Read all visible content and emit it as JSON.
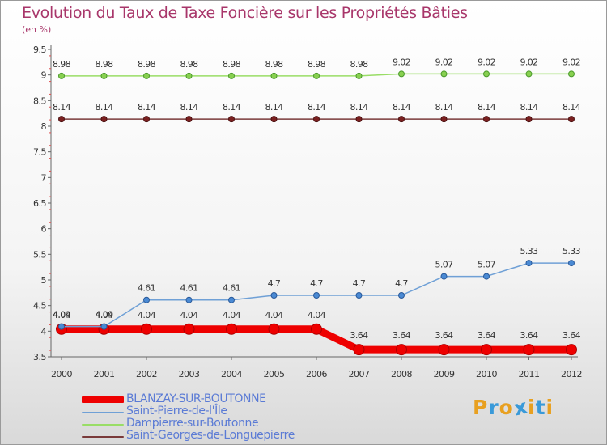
{
  "title": "Evolution du Taux de Taxe Foncière sur les Propriétés Bâties",
  "unit_label": "(en %)",
  "logo": {
    "letters": [
      "P",
      "r",
      "o",
      "x",
      "i",
      "t",
      "i"
    ],
    "colors": [
      "#e8a020",
      "#3a9ad9",
      "#e8a020",
      "#3a9ad9",
      "#e8a020",
      "#3a9ad9",
      "#e8a020"
    ]
  },
  "chart_data": {
    "type": "line",
    "title": "Evolution du Taux de Taxe Foncière sur les Propriétés Bâties",
    "ylabel": "(en %)",
    "xlabel": "",
    "x": [
      "2000",
      "2001",
      "2002",
      "2003",
      "2004",
      "2005",
      "2006",
      "2007",
      "2008",
      "2009",
      "2010",
      "2011",
      "2012"
    ],
    "ylim": [
      3.5,
      9.5
    ],
    "yticks": [
      "3.5",
      "4",
      "4.5",
      "5",
      "5.5",
      "6",
      "6.5",
      "7",
      "7.5",
      "8",
      "8.5",
      "9",
      "9.5"
    ],
    "grid": false,
    "legend_position": "bottom-left",
    "series": [
      {
        "name": "BLANZAY-SUR-BOUTONNE",
        "color": "#ee0000",
        "values": [
          4.04,
          4.04,
          4.04,
          4.04,
          4.04,
          4.04,
          4.04,
          3.64,
          3.64,
          3.64,
          3.64,
          3.64,
          3.64
        ],
        "labels": [
          "4.04",
          "4.04",
          "4.04",
          "4.04",
          "4.04",
          "4.04",
          "4.04",
          "3.64",
          "3.64",
          "3.64",
          "3.64",
          "3.64",
          "3.64"
        ]
      },
      {
        "name": "Saint-Pierre-de-l'Île",
        "color": "#6fa0d6",
        "values": [
          4.09,
          4.09,
          4.61,
          4.61,
          4.61,
          4.7,
          4.7,
          4.7,
          4.7,
          5.07,
          5.07,
          5.33,
          5.33
        ],
        "labels": [
          "4.09",
          "4.09",
          "4.61",
          "4.61",
          "4.61",
          "4.7",
          "4.7",
          "4.7",
          "4.7",
          "5.07",
          "5.07",
          "5.33",
          "5.33"
        ]
      },
      {
        "name": "Dampierre-sur-Boutonne",
        "color": "#99dd66",
        "values": [
          8.98,
          8.98,
          8.98,
          8.98,
          8.98,
          8.98,
          8.98,
          8.98,
          9.02,
          9.02,
          9.02,
          9.02,
          9.02
        ],
        "labels": [
          "8.98",
          "8.98",
          "8.98",
          "8.98",
          "8.98",
          "8.98",
          "8.98",
          "8.98",
          "9.02",
          "9.02",
          "9.02",
          "9.02",
          "9.02"
        ]
      },
      {
        "name": "Saint-Georges-de-Longuepierre",
        "color": "#7a3a3a",
        "values": [
          8.14,
          8.14,
          8.14,
          8.14,
          8.14,
          8.14,
          8.14,
          8.14,
          8.14,
          8.14,
          8.14,
          8.14,
          8.14
        ],
        "labels": [
          "8.14",
          "8.14",
          "8.14",
          "8.14",
          "8.14",
          "8.14",
          "8.14",
          "8.14",
          "8.14",
          "8.14",
          "8.14",
          "8.14",
          "8.14"
        ]
      }
    ]
  }
}
